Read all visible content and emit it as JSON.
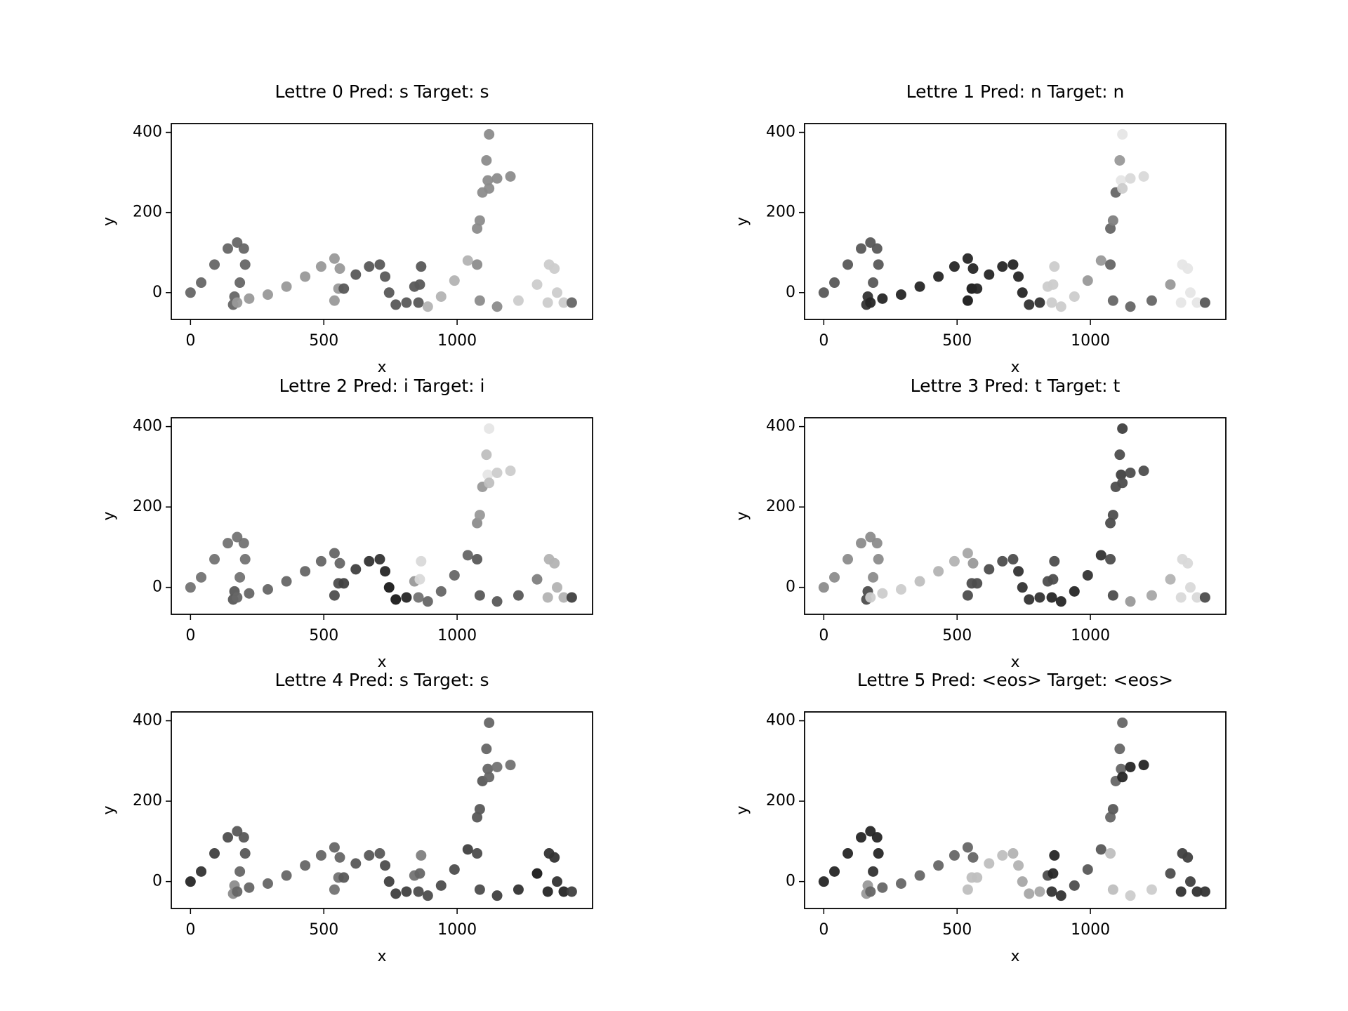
{
  "chart_data": [
    {
      "type": "scatter",
      "title": "Lettre 0 Pred: s Target: s",
      "xlabel": "x",
      "ylabel": "y",
      "cmap": "gray",
      "x": [
        0,
        40,
        90,
        140,
        175,
        200,
        205,
        185,
        165,
        160,
        175,
        220,
        290,
        360,
        430,
        490,
        540,
        560,
        555,
        540,
        575,
        620,
        670,
        710,
        730,
        745,
        770,
        810,
        840,
        865,
        860,
        855,
        890,
        940,
        990,
        1040,
        1075,
        1095,
        1110,
        1120,
        1115,
        1150,
        1200,
        1120,
        1085,
        1075,
        1085,
        1150,
        1230,
        1300,
        1345,
        1365,
        1375,
        1340,
        1400,
        1430
      ],
      "y": [
        0,
        25,
        70,
        110,
        125,
        110,
        70,
        25,
        -10,
        -30,
        -25,
        -15,
        -5,
        15,
        40,
        65,
        85,
        60,
        10,
        -20,
        10,
        45,
        65,
        70,
        40,
        0,
        -30,
        -25,
        15,
        65,
        20,
        -25,
        -35,
        -10,
        30,
        80,
        160,
        250,
        330,
        395,
        280,
        285,
        290,
        260,
        180,
        70,
        -20,
        -35,
        -20,
        20,
        70,
        60,
        0,
        -25,
        -25,
        -25
      ],
      "c": [
        0.4,
        0.4,
        0.4,
        0.4,
        0.4,
        0.4,
        0.4,
        0.4,
        0.4,
        0.4,
        0.6,
        0.6,
        0.6,
        0.6,
        0.6,
        0.6,
        0.6,
        0.6,
        0.6,
        0.6,
        0.35,
        0.35,
        0.35,
        0.35,
        0.35,
        0.35,
        0.35,
        0.35,
        0.35,
        0.35,
        0.35,
        0.35,
        0.7,
        0.7,
        0.7,
        0.7,
        0.55,
        0.55,
        0.55,
        0.55,
        0.55,
        0.55,
        0.55,
        0.55,
        0.55,
        0.55,
        0.55,
        0.55,
        0.8,
        0.8,
        0.8,
        0.8,
        0.8,
        0.8,
        0.8,
        0.4
      ],
      "xlim": [
        -72,
        1508
      ],
      "ylim": [
        -67,
        422
      ],
      "xticks": [
        0,
        500,
        1000
      ],
      "yticks": [
        0,
        200,
        400
      ]
    },
    {
      "type": "scatter",
      "title": "Lettre 1 Pred: n Target: n",
      "xlabel": "x",
      "ylabel": "y",
      "cmap": "gray",
      "x": [
        0,
        40,
        90,
        140,
        175,
        200,
        205,
        185,
        165,
        160,
        175,
        220,
        290,
        360,
        430,
        490,
        540,
        560,
        555,
        540,
        575,
        620,
        670,
        710,
        730,
        745,
        770,
        810,
        840,
        865,
        860,
        855,
        890,
        940,
        990,
        1040,
        1075,
        1095,
        1110,
        1120,
        1115,
        1150,
        1200,
        1120,
        1085,
        1075,
        1085,
        1150,
        1230,
        1300,
        1345,
        1365,
        1375,
        1340,
        1400,
        1430
      ],
      "y": [
        0,
        25,
        70,
        110,
        125,
        110,
        70,
        25,
        -10,
        -30,
        -25,
        -15,
        -5,
        15,
        40,
        65,
        85,
        60,
        10,
        -20,
        10,
        45,
        65,
        70,
        40,
        0,
        -30,
        -25,
        15,
        65,
        20,
        -25,
        -35,
        -10,
        30,
        80,
        160,
        250,
        330,
        395,
        280,
        285,
        290,
        260,
        180,
        70,
        -20,
        -35,
        -20,
        20,
        70,
        60,
        0,
        -25,
        -25,
        -25
      ],
      "c": [
        0.35,
        0.35,
        0.35,
        0.35,
        0.35,
        0.35,
        0.35,
        0.35,
        0.2,
        0.2,
        0.15,
        0.15,
        0.15,
        0.15,
        0.15,
        0.15,
        0.15,
        0.15,
        0.1,
        0.1,
        0.15,
        0.15,
        0.15,
        0.15,
        0.15,
        0.15,
        0.2,
        0.2,
        0.8,
        0.8,
        0.8,
        0.8,
        0.8,
        0.8,
        0.6,
        0.6,
        0.4,
        0.4,
        0.6,
        0.9,
        0.9,
        0.85,
        0.85,
        0.8,
        0.5,
        0.4,
        0.4,
        0.4,
        0.4,
        0.6,
        0.9,
        0.9,
        0.9,
        0.9,
        0.9,
        0.35
      ],
      "xlim": [
        -72,
        1508
      ],
      "ylim": [
        -67,
        422
      ],
      "xticks": [
        0,
        500,
        1000
      ],
      "yticks": [
        0,
        200,
        400
      ]
    },
    {
      "type": "scatter",
      "title": "Lettre 2 Pred: i Target: i",
      "xlabel": "x",
      "ylabel": "y",
      "cmap": "gray",
      "x": [
        0,
        40,
        90,
        140,
        175,
        200,
        205,
        185,
        165,
        160,
        175,
        220,
        290,
        360,
        430,
        490,
        540,
        560,
        555,
        540,
        575,
        620,
        670,
        710,
        730,
        745,
        770,
        810,
        840,
        865,
        860,
        855,
        890,
        940,
        990,
        1040,
        1075,
        1095,
        1110,
        1120,
        1115,
        1150,
        1200,
        1120,
        1085,
        1075,
        1085,
        1150,
        1230,
        1300,
        1345,
        1365,
        1375,
        1340,
        1400,
        1430
      ],
      "y": [
        0,
        25,
        70,
        110,
        125,
        110,
        70,
        25,
        -10,
        -30,
        -25,
        -15,
        -5,
        15,
        40,
        65,
        85,
        60,
        10,
        -20,
        10,
        45,
        65,
        70,
        40,
        0,
        -30,
        -25,
        15,
        65,
        20,
        -25,
        -35,
        -10,
        30,
        80,
        160,
        250,
        330,
        395,
        280,
        285,
        290,
        260,
        180,
        70,
        -20,
        -35,
        -20,
        20,
        70,
        60,
        0,
        -25,
        -25,
        -25
      ],
      "c": [
        0.45,
        0.45,
        0.45,
        0.45,
        0.45,
        0.45,
        0.45,
        0.45,
        0.35,
        0.35,
        0.4,
        0.4,
        0.4,
        0.4,
        0.4,
        0.4,
        0.4,
        0.4,
        0.3,
        0.3,
        0.25,
        0.25,
        0.2,
        0.2,
        0.15,
        0.1,
        0.1,
        0.15,
        0.6,
        0.85,
        0.85,
        0.45,
        0.4,
        0.4,
        0.4,
        0.4,
        0.55,
        0.6,
        0.75,
        0.9,
        0.9,
        0.8,
        0.8,
        0.75,
        0.6,
        0.35,
        0.35,
        0.35,
        0.35,
        0.5,
        0.7,
        0.7,
        0.7,
        0.7,
        0.7,
        0.25
      ],
      "xlim": [
        -72,
        1508
      ],
      "ylim": [
        -67,
        422
      ],
      "xticks": [
        0,
        500,
        1000
      ],
      "yticks": [
        0,
        200,
        400
      ]
    },
    {
      "type": "scatter",
      "title": "Lettre 3 Pred: t Target: t",
      "xlabel": "x",
      "ylabel": "y",
      "cmap": "gray",
      "x": [
        0,
        40,
        90,
        140,
        175,
        200,
        205,
        185,
        165,
        160,
        175,
        220,
        290,
        360,
        430,
        490,
        540,
        560,
        555,
        540,
        575,
        620,
        670,
        710,
        730,
        745,
        770,
        810,
        840,
        865,
        860,
        855,
        890,
        940,
        990,
        1040,
        1075,
        1095,
        1110,
        1120,
        1115,
        1150,
        1200,
        1120,
        1085,
        1075,
        1085,
        1150,
        1230,
        1300,
        1345,
        1365,
        1375,
        1340,
        1400,
        1430
      ],
      "y": [
        0,
        25,
        70,
        110,
        125,
        110,
        70,
        25,
        -10,
        -30,
        -25,
        -15,
        -5,
        15,
        40,
        65,
        85,
        60,
        10,
        -20,
        10,
        45,
        65,
        70,
        40,
        0,
        -30,
        -25,
        15,
        65,
        20,
        -25,
        -35,
        -10,
        30,
        80,
        160,
        250,
        330,
        395,
        280,
        285,
        290,
        260,
        180,
        70,
        -20,
        -35,
        -20,
        20,
        70,
        60,
        0,
        -25,
        -25,
        -25
      ],
      "c": [
        0.55,
        0.55,
        0.55,
        0.55,
        0.55,
        0.55,
        0.55,
        0.55,
        0.3,
        0.3,
        0.8,
        0.8,
        0.8,
        0.75,
        0.7,
        0.7,
        0.65,
        0.6,
        0.3,
        0.3,
        0.3,
        0.3,
        0.3,
        0.3,
        0.2,
        0.2,
        0.2,
        0.2,
        0.3,
        0.3,
        0.3,
        0.15,
        0.15,
        0.15,
        0.2,
        0.2,
        0.3,
        0.3,
        0.3,
        0.25,
        0.25,
        0.3,
        0.3,
        0.3,
        0.3,
        0.3,
        0.3,
        0.6,
        0.65,
        0.7,
        0.85,
        0.85,
        0.85,
        0.85,
        0.85,
        0.3
      ],
      "xlim": [
        -72,
        1508
      ],
      "ylim": [
        -67,
        422
      ],
      "xticks": [
        0,
        500,
        1000
      ],
      "yticks": [
        0,
        200,
        400
      ]
    },
    {
      "type": "scatter",
      "title": "Lettre 4 Pred: s Target: s",
      "xlabel": "x",
      "ylabel": "y",
      "cmap": "gray",
      "x": [
        0,
        40,
        90,
        140,
        175,
        200,
        205,
        185,
        165,
        160,
        175,
        220,
        290,
        360,
        430,
        490,
        540,
        560,
        555,
        540,
        575,
        620,
        670,
        710,
        730,
        745,
        770,
        810,
        840,
        865,
        860,
        855,
        890,
        940,
        990,
        1040,
        1075,
        1095,
        1110,
        1120,
        1115,
        1150,
        1200,
        1120,
        1085,
        1075,
        1085,
        1150,
        1230,
        1300,
        1345,
        1365,
        1375,
        1340,
        1400,
        1430
      ],
      "y": [
        0,
        25,
        70,
        110,
        125,
        110,
        70,
        25,
        -10,
        -30,
        -25,
        -15,
        -5,
        15,
        40,
        65,
        85,
        60,
        10,
        -20,
        10,
        45,
        65,
        70,
        40,
        0,
        -30,
        -25,
        15,
        65,
        20,
        -25,
        -35,
        -10,
        30,
        80,
        160,
        250,
        330,
        395,
        280,
        285,
        290,
        260,
        180,
        70,
        -20,
        -35,
        -20,
        20,
        70,
        60,
        0,
        -25,
        -25,
        -25
      ],
      "c": [
        0.15,
        0.2,
        0.25,
        0.3,
        0.35,
        0.35,
        0.35,
        0.4,
        0.55,
        0.55,
        0.4,
        0.4,
        0.4,
        0.4,
        0.4,
        0.4,
        0.4,
        0.4,
        0.45,
        0.45,
        0.35,
        0.35,
        0.35,
        0.35,
        0.3,
        0.25,
        0.25,
        0.25,
        0.45,
        0.5,
        0.4,
        0.3,
        0.3,
        0.3,
        0.3,
        0.25,
        0.35,
        0.35,
        0.4,
        0.4,
        0.4,
        0.45,
        0.45,
        0.4,
        0.35,
        0.3,
        0.3,
        0.25,
        0.2,
        0.1,
        0.2,
        0.2,
        0.2,
        0.15,
        0.15,
        0.25
      ],
      "xlim": [
        -72,
        1508
      ],
      "ylim": [
        -67,
        422
      ],
      "xticks": [
        0,
        500,
        1000
      ],
      "yticks": [
        0,
        200,
        400
      ]
    },
    {
      "type": "scatter",
      "title": "Lettre 5 Pred: <eos> Target: <eos>",
      "xlabel": "x",
      "ylabel": "y",
      "cmap": "gray",
      "x": [
        0,
        40,
        90,
        140,
        175,
        200,
        205,
        185,
        165,
        160,
        175,
        220,
        290,
        360,
        430,
        490,
        540,
        560,
        555,
        540,
        575,
        620,
        670,
        710,
        730,
        745,
        770,
        810,
        840,
        865,
        860,
        855,
        890,
        940,
        990,
        1040,
        1075,
        1095,
        1110,
        1120,
        1115,
        1150,
        1200,
        1120,
        1085,
        1075,
        1085,
        1150,
        1230,
        1300,
        1345,
        1365,
        1375,
        1340,
        1400,
        1430
      ],
      "y": [
        0,
        25,
        70,
        110,
        125,
        110,
        70,
        25,
        -10,
        -30,
        -25,
        -15,
        -5,
        15,
        40,
        65,
        85,
        60,
        10,
        -20,
        10,
        45,
        65,
        70,
        40,
        0,
        -30,
        -25,
        15,
        65,
        20,
        -25,
        -35,
        -10,
        30,
        80,
        160,
        250,
        330,
        395,
        280,
        285,
        290,
        260,
        180,
        70,
        -20,
        -35,
        -20,
        20,
        70,
        60,
        0,
        -25,
        -25,
        -25
      ],
      "c": [
        0.15,
        0.15,
        0.15,
        0.15,
        0.15,
        0.15,
        0.15,
        0.2,
        0.6,
        0.6,
        0.4,
        0.4,
        0.4,
        0.4,
        0.4,
        0.4,
        0.4,
        0.4,
        0.75,
        0.75,
        0.75,
        0.75,
        0.75,
        0.7,
        0.7,
        0.65,
        0.65,
        0.65,
        0.3,
        0.15,
        0.15,
        0.2,
        0.2,
        0.3,
        0.35,
        0.35,
        0.4,
        0.4,
        0.4,
        0.4,
        0.4,
        0.15,
        0.15,
        0.15,
        0.35,
        0.75,
        0.75,
        0.8,
        0.8,
        0.3,
        0.25,
        0.25,
        0.25,
        0.2,
        0.2,
        0.2
      ],
      "xlim": [
        -72,
        1508
      ],
      "ylim": [
        -67,
        422
      ],
      "xticks": [
        0,
        500,
        1000
      ],
      "yticks": [
        0,
        200,
        400
      ]
    }
  ]
}
